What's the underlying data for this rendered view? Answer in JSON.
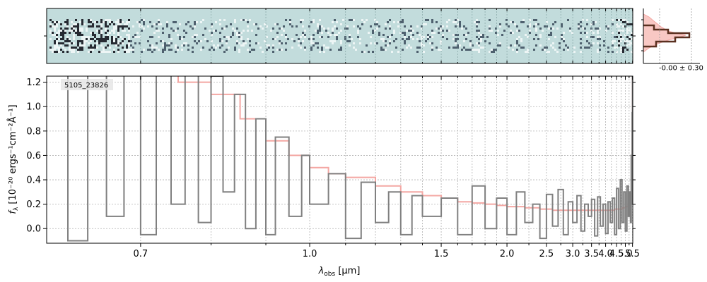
{
  "chart_data": {
    "type": "line",
    "object_label": "5105_23826",
    "xlabel_main": "λ",
    "xlabel_sub": "obs",
    "xlabel_unit": "[μm]",
    "ylabel_main": "f",
    "ylabel_sub": "λ",
    "ylabel_unit": "[10⁻²⁰ ergs⁻¹cm⁻²Å⁻¹]",
    "x_scale": "reciprocal",
    "xlim": [
      0.6,
      5.52
    ],
    "ylim": [
      -0.12,
      1.25
    ],
    "x_ticks": [
      0.7,
      0.8,
      0.9,
      1.0,
      1.1,
      1.2,
      1.3,
      1.4,
      1.5,
      1.6,
      1.7,
      1.8,
      1.9,
      2.0,
      2.25,
      2.5,
      2.75,
      3.0,
      3.25,
      3.5,
      3.75,
      4.0,
      4.25,
      4.5,
      4.75,
      5.0,
      5.25,
      5.5
    ],
    "x_tick_labels": [
      "0.7",
      "",
      "",
      "1.0",
      "",
      "",
      "",
      "",
      "1.5",
      "",
      "",
      "",
      "",
      "2.0",
      "",
      "2.5",
      "",
      "3.0",
      "",
      "3.5",
      "",
      "4.0",
      "",
      "4.5",
      "",
      "5.0",
      "",
      "5.5"
    ],
    "y_ticks": [
      0.0,
      0.2,
      0.4,
      0.6,
      0.8,
      1.0,
      1.2
    ],
    "y_tick_labels": [
      "0.0",
      "0.2",
      "0.4",
      "0.6",
      "0.8",
      "1.0",
      "1.2"
    ],
    "grid": true,
    "series": [
      {
        "role": "spectrum",
        "style": "steps",
        "color": "#808080",
        "points": [
          [
            0.6,
            1.3
          ],
          [
            0.62,
            -0.1
          ],
          [
            0.64,
            1.3
          ],
          [
            0.66,
            0.1
          ],
          [
            0.68,
            1.3
          ],
          [
            0.7,
            -0.05
          ],
          [
            0.72,
            1.3
          ],
          [
            0.74,
            0.2
          ],
          [
            0.76,
            1.3
          ],
          [
            0.78,
            0.05
          ],
          [
            0.8,
            1.25
          ],
          [
            0.82,
            0.3
          ],
          [
            0.84,
            1.1
          ],
          [
            0.86,
            0.0
          ],
          [
            0.88,
            0.9
          ],
          [
            0.9,
            -0.05
          ],
          [
            0.92,
            0.75
          ],
          [
            0.95,
            0.1
          ],
          [
            0.98,
            0.6
          ],
          [
            1.0,
            0.2
          ],
          [
            1.05,
            0.45
          ],
          [
            1.1,
            -0.08
          ],
          [
            1.15,
            0.38
          ],
          [
            1.2,
            0.05
          ],
          [
            1.25,
            0.3
          ],
          [
            1.3,
            -0.05
          ],
          [
            1.35,
            0.27
          ],
          [
            1.4,
            0.1
          ],
          [
            1.5,
            0.25
          ],
          [
            1.6,
            -0.05
          ],
          [
            1.7,
            0.35
          ],
          [
            1.8,
            0.0
          ],
          [
            1.9,
            0.25
          ],
          [
            2.0,
            -0.05
          ],
          [
            2.1,
            0.3
          ],
          [
            2.2,
            0.05
          ],
          [
            2.3,
            0.2
          ],
          [
            2.4,
            -0.08
          ],
          [
            2.5,
            0.28
          ],
          [
            2.6,
            0.02
          ],
          [
            2.7,
            0.32
          ],
          [
            2.8,
            -0.05
          ],
          [
            2.9,
            0.22
          ],
          [
            3.0,
            0.05
          ],
          [
            3.1,
            0.27
          ],
          [
            3.2,
            -0.02
          ],
          [
            3.3,
            0.2
          ],
          [
            3.4,
            0.1
          ],
          [
            3.5,
            0.24
          ],
          [
            3.6,
            -0.06
          ],
          [
            3.7,
            0.26
          ],
          [
            3.8,
            0.02
          ],
          [
            3.9,
            0.2
          ],
          [
            4.0,
            -0.04
          ],
          [
            4.1,
            0.22
          ],
          [
            4.2,
            0.05
          ],
          [
            4.3,
            0.25
          ],
          [
            4.4,
            -0.05
          ],
          [
            4.5,
            0.33
          ],
          [
            4.6,
            0.0
          ],
          [
            4.7,
            0.4
          ],
          [
            4.8,
            0.05
          ],
          [
            4.9,
            0.3
          ],
          [
            5.0,
            -0.02
          ],
          [
            5.1,
            0.35
          ],
          [
            5.2,
            0.1
          ],
          [
            5.3,
            0.3
          ],
          [
            5.35,
            0.05
          ],
          [
            5.4,
            0.6
          ],
          [
            5.44,
            0.2
          ],
          [
            5.47,
            0.95
          ],
          [
            5.5,
            1.3
          ]
        ]
      },
      {
        "role": "model",
        "style": "steps",
        "color": "#f4a7a3",
        "points": [
          [
            0.6,
            1.3
          ],
          [
            0.7,
            1.3
          ],
          [
            0.75,
            1.2
          ],
          [
            0.8,
            1.1
          ],
          [
            0.85,
            0.9
          ],
          [
            0.9,
            0.72
          ],
          [
            0.95,
            0.6
          ],
          [
            1.0,
            0.5
          ],
          [
            1.05,
            0.45
          ],
          [
            1.1,
            0.42
          ],
          [
            1.2,
            0.35
          ],
          [
            1.3,
            0.3
          ],
          [
            1.4,
            0.27
          ],
          [
            1.5,
            0.25
          ],
          [
            1.6,
            0.22
          ],
          [
            1.7,
            0.21
          ],
          [
            1.8,
            0.2
          ],
          [
            1.9,
            0.19
          ],
          [
            2.0,
            0.18
          ],
          [
            2.2,
            0.17
          ],
          [
            2.4,
            0.16
          ],
          [
            2.6,
            0.15
          ],
          [
            2.8,
            0.15
          ],
          [
            3.0,
            0.15
          ],
          [
            3.2,
            0.15
          ],
          [
            3.4,
            0.15
          ],
          [
            3.6,
            0.15
          ],
          [
            3.8,
            0.15
          ],
          [
            4.0,
            0.15
          ],
          [
            4.2,
            0.15
          ],
          [
            4.4,
            0.16
          ],
          [
            4.6,
            0.16
          ],
          [
            4.8,
            0.17
          ],
          [
            5.0,
            0.18
          ],
          [
            5.2,
            0.2
          ],
          [
            5.3,
            0.22
          ],
          [
            5.38,
            0.28
          ],
          [
            5.42,
            0.4
          ],
          [
            5.45,
            0.6
          ],
          [
            5.48,
            0.9
          ],
          [
            5.5,
            1.3
          ]
        ]
      }
    ],
    "inset": {
      "label": "-0.00 ± 0.30",
      "type": "histogram"
    }
  }
}
